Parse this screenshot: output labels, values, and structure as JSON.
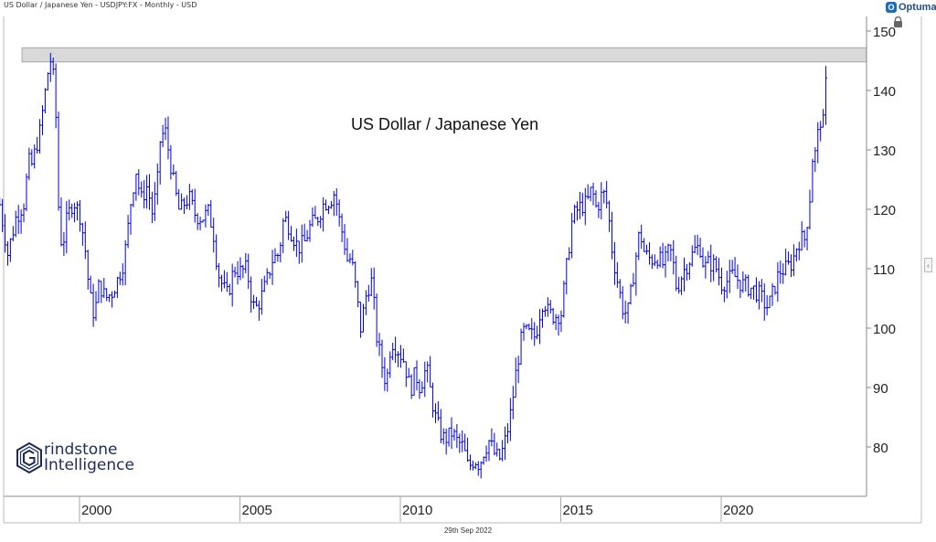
{
  "header": {
    "title": "US Dollar / Japanese Yen - USDJPY:FX - Monthly - USD"
  },
  "logo_top": {
    "mark": "O",
    "text": "Optuma"
  },
  "icons": {
    "lock": "lock-icon",
    "expand": "chevron-left-icon"
  },
  "footer": {
    "date": "29th Sep 2022"
  },
  "brand": {
    "line1": "rindstone",
    "line2": "Intelligence",
    "glyph": "G"
  },
  "colors": {
    "bar": "#0000d8",
    "band_fill": "#d9d9d9",
    "band_stroke": "#999999",
    "axis": "#888888"
  },
  "chart_data": {
    "type": "ohlc",
    "title": "US Dollar / Japanese Yen",
    "xlabel": "",
    "ylabel": "",
    "ylim": [
      71,
      153
    ],
    "y_ticks": [
      80,
      90,
      100,
      110,
      120,
      130,
      140,
      150
    ],
    "x_ticks": [
      2000,
      2005,
      2010,
      2015,
      2020
    ],
    "xlim": [
      1997.0,
      2024.0
    ],
    "grid": false,
    "resistance_band": {
      "low": 144.8,
      "high": 147.2
    },
    "series": [
      {
        "name": "USDJPY",
        "frequency": "monthly",
        "points": [
          [
            1997.0,
            120.8
          ],
          [
            1997.25,
            112.5
          ],
          [
            1997.5,
            118.5
          ],
          [
            1997.75,
            121.0
          ],
          [
            1997.9,
            128.0
          ],
          [
            1998.0,
            127.5
          ],
          [
            1998.25,
            133.0
          ],
          [
            1998.5,
            143.0
          ],
          [
            1998.62,
            146.0
          ],
          [
            1998.75,
            135.5
          ],
          [
            1998.85,
            117.5
          ],
          [
            1998.95,
            113.5
          ],
          [
            1999.1,
            118.5
          ],
          [
            1999.3,
            121.5
          ],
          [
            1999.5,
            119.0
          ],
          [
            1999.65,
            114.0
          ],
          [
            1999.8,
            105.5
          ],
          [
            1999.95,
            102.0
          ],
          [
            2000.1,
            107.5
          ],
          [
            2000.3,
            105.0
          ],
          [
            2000.5,
            106.0
          ],
          [
            2000.7,
            108.5
          ],
          [
            2000.85,
            111.0
          ],
          [
            2000.95,
            114.5
          ],
          [
            2001.1,
            122.0
          ],
          [
            2001.25,
            126.5
          ],
          [
            2001.4,
            121.5
          ],
          [
            2001.6,
            124.0
          ],
          [
            2001.75,
            119.5
          ],
          [
            2001.9,
            123.5
          ],
          [
            2002.0,
            131.5
          ],
          [
            2002.15,
            133.5
          ],
          [
            2002.3,
            128.5
          ],
          [
            2002.45,
            123.5
          ],
          [
            2002.6,
            119.5
          ],
          [
            2002.75,
            121.0
          ],
          [
            2002.9,
            122.0
          ],
          [
            2003.1,
            119.0
          ],
          [
            2003.3,
            118.5
          ],
          [
            2003.5,
            119.5
          ],
          [
            2003.65,
            116.5
          ],
          [
            2003.8,
            109.5
          ],
          [
            2003.95,
            107.0
          ],
          [
            2004.1,
            105.5
          ],
          [
            2004.3,
            110.0
          ],
          [
            2004.5,
            109.5
          ],
          [
            2004.7,
            110.0
          ],
          [
            2004.85,
            105.0
          ],
          [
            2004.95,
            103.0
          ],
          [
            2005.1,
            104.5
          ],
          [
            2005.3,
            107.5
          ],
          [
            2005.5,
            111.5
          ],
          [
            2005.7,
            112.5
          ],
          [
            2005.85,
            118.5
          ],
          [
            2005.95,
            118.0
          ],
          [
            2006.1,
            116.0
          ],
          [
            2006.3,
            113.5
          ],
          [
            2006.5,
            114.5
          ],
          [
            2006.7,
            117.5
          ],
          [
            2006.85,
            118.0
          ],
          [
            2006.95,
            119.0
          ],
          [
            2007.1,
            121.0
          ],
          [
            2007.3,
            121.5
          ],
          [
            2007.45,
            123.0
          ],
          [
            2007.55,
            119.0
          ],
          [
            2007.7,
            115.5
          ],
          [
            2007.85,
            111.0
          ],
          [
            2007.95,
            112.0
          ],
          [
            2008.1,
            106.5
          ],
          [
            2008.25,
            100.0
          ],
          [
            2008.45,
            106.5
          ],
          [
            2008.6,
            108.0
          ],
          [
            2008.75,
            98.5
          ],
          [
            2008.9,
            94.0
          ],
          [
            2009.05,
            90.5
          ],
          [
            2009.2,
            98.0
          ],
          [
            2009.4,
            96.5
          ],
          [
            2009.6,
            94.5
          ],
          [
            2009.8,
            89.5
          ],
          [
            2009.95,
            92.5
          ],
          [
            2010.1,
            90.0
          ],
          [
            2010.3,
            93.5
          ],
          [
            2010.45,
            88.5
          ],
          [
            2010.6,
            84.5
          ],
          [
            2010.8,
            81.5
          ],
          [
            2010.95,
            81.5
          ],
          [
            2011.1,
            82.5
          ],
          [
            2011.25,
            81.0
          ],
          [
            2011.45,
            80.0
          ],
          [
            2011.6,
            76.5
          ],
          [
            2011.8,
            78.0
          ],
          [
            2011.95,
            77.0
          ],
          [
            2012.1,
            79.5
          ],
          [
            2012.25,
            81.0
          ],
          [
            2012.45,
            78.5
          ],
          [
            2012.6,
            78.0
          ],
          [
            2012.8,
            82.0
          ],
          [
            2012.95,
            86.5
          ],
          [
            2013.1,
            93.0
          ],
          [
            2013.3,
            99.5
          ],
          [
            2013.5,
            99.0
          ],
          [
            2013.7,
            98.5
          ],
          [
            2013.85,
            103.0
          ],
          [
            2013.95,
            105.0
          ],
          [
            2014.1,
            102.5
          ],
          [
            2014.3,
            102.0
          ],
          [
            2014.5,
            102.5
          ],
          [
            2014.65,
            109.5
          ],
          [
            2014.85,
            118.5
          ],
          [
            2014.95,
            119.5
          ],
          [
            2015.1,
            120.5
          ],
          [
            2015.3,
            121.0
          ],
          [
            2015.45,
            123.5
          ],
          [
            2015.6,
            120.0
          ],
          [
            2015.8,
            123.0
          ],
          [
            2015.95,
            120.5
          ],
          [
            2016.1,
            112.5
          ],
          [
            2016.3,
            106.5
          ],
          [
            2016.45,
            102.5
          ],
          [
            2016.6,
            103.0
          ],
          [
            2016.8,
            111.0
          ],
          [
            2016.95,
            116.5
          ],
          [
            2017.1,
            112.5
          ],
          [
            2017.3,
            111.5
          ],
          [
            2017.5,
            112.0
          ],
          [
            2017.7,
            110.5
          ],
          [
            2017.85,
            113.0
          ],
          [
            2017.95,
            112.5
          ],
          [
            2018.1,
            106.5
          ],
          [
            2018.3,
            109.5
          ],
          [
            2018.5,
            111.5
          ],
          [
            2018.7,
            113.5
          ],
          [
            2018.85,
            113.5
          ],
          [
            2018.95,
            110.0
          ],
          [
            2019.1,
            111.0
          ],
          [
            2019.3,
            110.5
          ],
          [
            2019.5,
            107.5
          ],
          [
            2019.7,
            108.0
          ],
          [
            2019.85,
            109.0
          ],
          [
            2019.95,
            108.5
          ],
          [
            2020.1,
            107.5
          ],
          [
            2020.3,
            107.0
          ],
          [
            2020.5,
            106.5
          ],
          [
            2020.7,
            105.5
          ],
          [
            2020.85,
            104.0
          ],
          [
            2020.95,
            103.5
          ],
          [
            2021.1,
            106.0
          ],
          [
            2021.3,
            109.5
          ],
          [
            2021.5,
            110.0
          ],
          [
            2021.7,
            111.0
          ],
          [
            2021.85,
            114.0
          ],
          [
            2021.95,
            115.0
          ],
          [
            2022.1,
            115.0
          ],
          [
            2022.25,
            122.0
          ],
          [
            2022.35,
            130.0
          ],
          [
            2022.45,
            129.0
          ],
          [
            2022.55,
            136.0
          ],
          [
            2022.65,
            133.0
          ],
          [
            2022.72,
            139.0
          ],
          [
            2022.8,
            144.5
          ]
        ]
      }
    ]
  }
}
